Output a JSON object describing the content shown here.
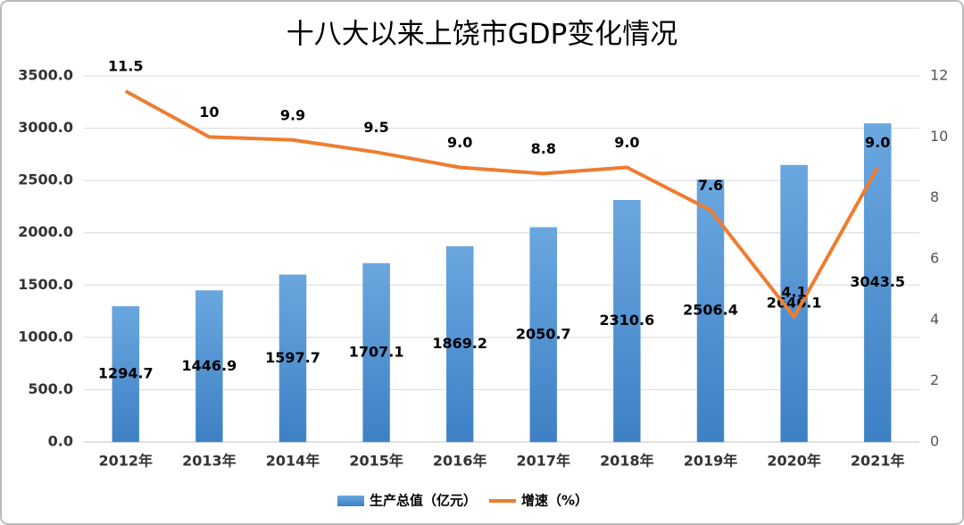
{
  "chart_data": {
    "type": "bar_line",
    "title": "十八大以来上饶市GDP变化情况",
    "categories": [
      "2012年",
      "2013年",
      "2014年",
      "2015年",
      "2016年",
      "2017年",
      "2018年",
      "2019年",
      "2020年",
      "2021年"
    ],
    "series": [
      {
        "name": "生产总值（亿元）",
        "type": "bar",
        "color": "#5b9bd5",
        "values": [
          1294.7,
          1446.9,
          1597.7,
          1707.1,
          1869.2,
          2050.7,
          2310.6,
          2506.4,
          2646.1,
          3043.5
        ]
      },
      {
        "name": "增速（%）",
        "type": "line",
        "axis": "y2",
        "color": "#ed7d31",
        "values": [
          11.5,
          10,
          9.9,
          9.5,
          9.0,
          8.8,
          9.0,
          7.6,
          4.1,
          9.0
        ],
        "value_labels": [
          "11.5",
          "10",
          "9.9",
          "9.5",
          "9.0",
          "8.8",
          "9.0",
          "7.6",
          "4.1",
          "9.0"
        ]
      }
    ],
    "ylim": [
      0,
      3500
    ],
    "yticks": [
      {
        "value": 0,
        "label": "0.0"
      },
      {
        "value": 500,
        "label": "500.0"
      },
      {
        "value": 1000,
        "label": "1000.0"
      },
      {
        "value": 1500,
        "label": "1500.0"
      },
      {
        "value": 2000,
        "label": "2000.0"
      },
      {
        "value": 2500,
        "label": "2500.0"
      },
      {
        "value": 3000,
        "label": "3000.0"
      },
      {
        "value": 3500,
        "label": "3500.0"
      }
    ],
    "y2lim": [
      0,
      12
    ],
    "y2ticks": [
      0,
      2,
      4,
      6,
      8,
      10,
      12
    ],
    "grid": true,
    "legend": "bottom"
  }
}
